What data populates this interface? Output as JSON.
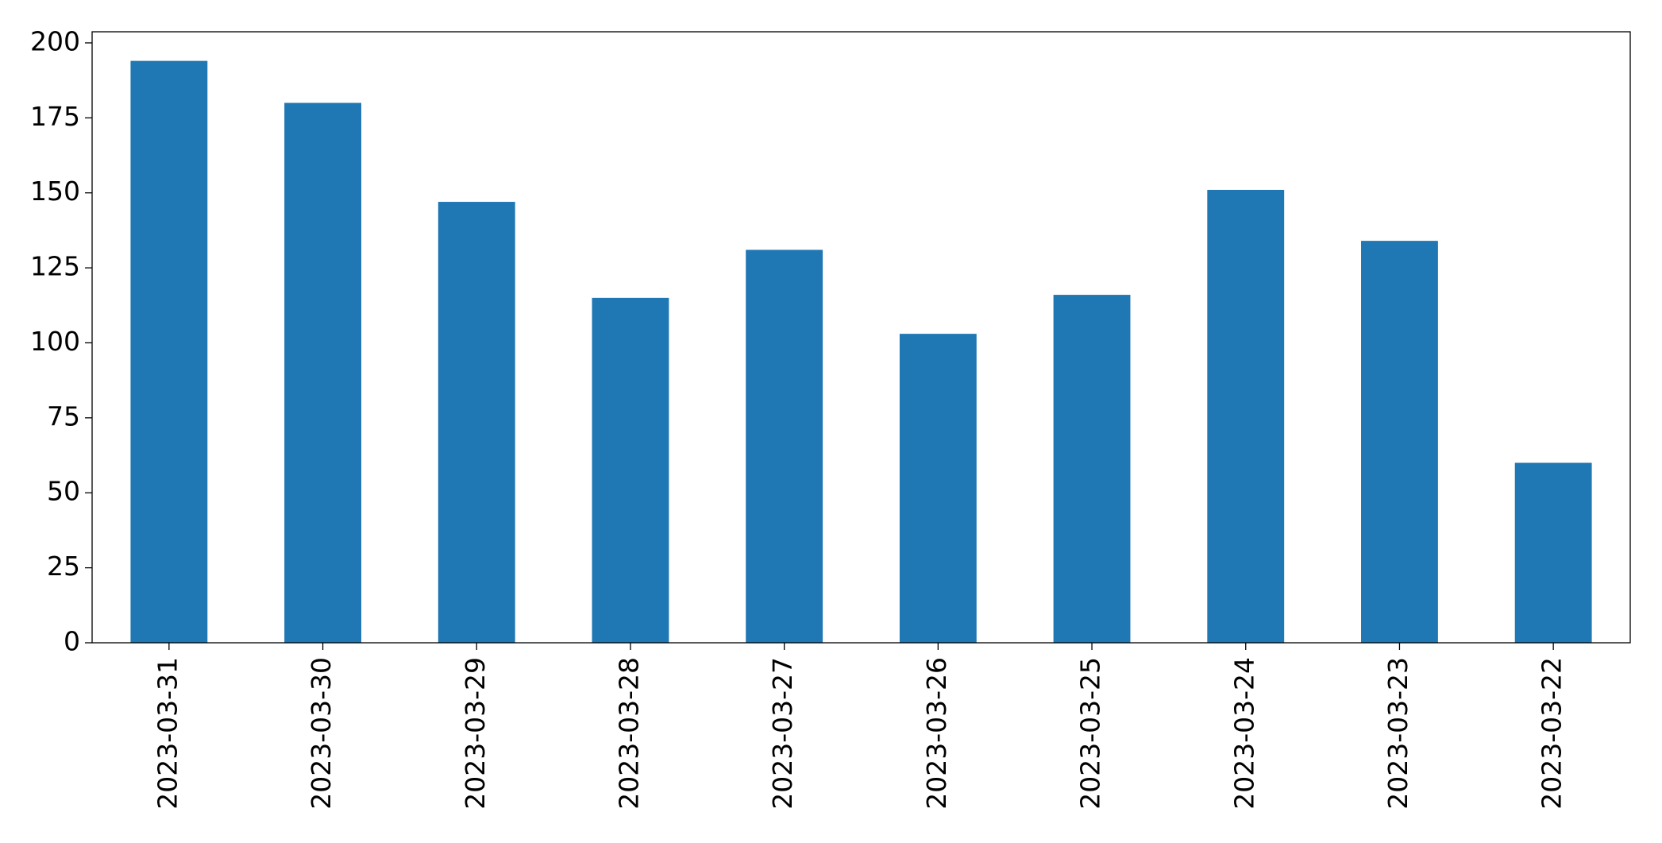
{
  "chart_data": {
    "type": "bar",
    "categories": [
      "2023-03-31",
      "2023-03-30",
      "2023-03-29",
      "2023-03-28",
      "2023-03-27",
      "2023-03-26",
      "2023-03-25",
      "2023-03-24",
      "2023-03-23",
      "2023-03-22"
    ],
    "values": [
      194,
      180,
      147,
      115,
      131,
      103,
      116,
      151,
      134,
      60
    ],
    "color": "#1f77b4",
    "ylim": [
      0,
      203.7
    ],
    "yticks": [
      0,
      25,
      50,
      75,
      100,
      125,
      150,
      175,
      200
    ],
    "grid": false
  }
}
